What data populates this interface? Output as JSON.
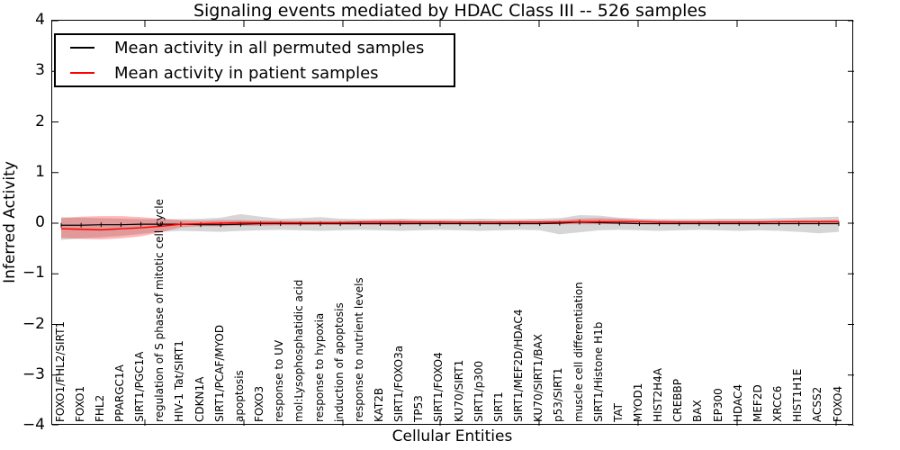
{
  "chart_data": {
    "type": "line",
    "title": "Signaling events mediated by HDAC Class III -- 526 samples",
    "xlabel": "Cellular Entities",
    "ylabel": "Inferred Activity",
    "ylim": [
      -4,
      4
    ],
    "y_ticks": [
      4,
      3,
      2,
      1,
      0,
      -1,
      -2,
      -3,
      -4
    ],
    "y_tick_labels": [
      "4",
      "3",
      "2",
      "1",
      "0",
      "−1",
      "−2",
      "−3",
      "−4"
    ],
    "grid": false,
    "legend_position": "upper left",
    "categories": [
      "FOXO1/FHL2/SIRT1",
      "FOXO1",
      "FHL2",
      "PPARGC1A",
      "SIRT1/PGC1A",
      "regulation of S phase of mitotic cell cycle",
      "HIV-1 Tat/SIRT1",
      "CDKN1A",
      "SIRT1/PCAF/MYOD",
      "apoptosis",
      "FOXO3",
      "response to UV",
      "mol:Lysophosphatidic acid",
      "response to hypoxia",
      "induction of apoptosis",
      "response to nutrient levels",
      "KAT2B",
      "SIRT1/FOXO3a",
      "TP53",
      "SIRT1/FOXO4",
      "KU70/SIRT1",
      "SIRT1/p300",
      "SIRT1",
      "SIRT1/MEF2D/HDAC4",
      "KU70/SIRT1/BAX",
      "p53/SIRT1",
      "muscle cell differentiation",
      "SIRT1/Histone H1b",
      "TAT",
      "MYOD1",
      "HIST2H4A",
      "CREBBP",
      "BAX",
      "EP300",
      "HDAC4",
      "MEF2D",
      "XRCC6",
      "HIST1H1E",
      "ACSS2",
      "FOXO4"
    ],
    "series": [
      {
        "name": "Mean activity in all permuted samples",
        "color": "#000000",
        "band_color": "#9e9e9e",
        "values": [
          -0.04,
          -0.04,
          -0.03,
          -0.03,
          -0.02,
          -0.02,
          -0.02,
          -0.03,
          -0.03,
          -0.02,
          -0.01,
          -0.01,
          -0.01,
          -0.01,
          -0.01,
          -0.01,
          -0.01,
          -0.01,
          -0.01,
          -0.01,
          -0.01,
          -0.01,
          -0.01,
          -0.01,
          -0.01,
          0.0,
          0.02,
          0.01,
          0.0,
          -0.01,
          -0.01,
          -0.01,
          -0.01,
          -0.01,
          -0.01,
          -0.01,
          -0.01,
          -0.01,
          -0.01,
          -0.01
        ],
        "band_low": [
          -0.33,
          -0.3,
          -0.28,
          -0.25,
          -0.21,
          -0.17,
          -0.15,
          -0.16,
          -0.17,
          -0.15,
          -0.14,
          -0.13,
          -0.14,
          -0.15,
          -0.14,
          -0.13,
          -0.14,
          -0.15,
          -0.14,
          -0.13,
          -0.14,
          -0.15,
          -0.14,
          -0.13,
          -0.14,
          -0.22,
          -0.18,
          -0.14,
          -0.13,
          -0.14,
          -0.15,
          -0.14,
          -0.13,
          -0.14,
          -0.15,
          -0.14,
          -0.15,
          -0.17,
          -0.2,
          -0.17
        ],
        "band_high": [
          0.12,
          0.11,
          0.1,
          0.09,
          0.08,
          0.08,
          0.08,
          0.09,
          0.11,
          0.18,
          0.13,
          0.09,
          0.1,
          0.12,
          0.09,
          0.08,
          0.08,
          0.09,
          0.08,
          0.08,
          0.08,
          0.09,
          0.08,
          0.08,
          0.09,
          0.1,
          0.16,
          0.15,
          0.11,
          0.09,
          0.08,
          0.08,
          0.08,
          0.09,
          0.09,
          0.09,
          0.1,
          0.11,
          0.12,
          0.13
        ]
      },
      {
        "name": "Mean activity in patient samples",
        "color": "#ff0000",
        "band_color": "#ff0000",
        "values": [
          -0.11,
          -0.12,
          -0.13,
          -0.11,
          -0.09,
          -0.06,
          -0.02,
          -0.01,
          0.0,
          0.01,
          0.01,
          0.01,
          0.01,
          0.01,
          0.01,
          0.02,
          0.02,
          0.02,
          0.02,
          0.02,
          0.02,
          0.02,
          0.02,
          0.02,
          0.02,
          0.02,
          0.03,
          0.03,
          0.03,
          0.03,
          0.02,
          0.02,
          0.02,
          0.02,
          0.02,
          0.02,
          0.03,
          0.03,
          0.03,
          0.03
        ],
        "band_low": [
          -0.29,
          -0.31,
          -0.32,
          -0.3,
          -0.26,
          -0.18,
          -0.08,
          -0.06,
          -0.06,
          -0.05,
          -0.05,
          -0.04,
          -0.04,
          -0.03,
          -0.03,
          -0.03,
          -0.03,
          -0.03,
          -0.02,
          -0.02,
          -0.02,
          -0.02,
          -0.02,
          -0.02,
          -0.02,
          -0.02,
          -0.02,
          -0.02,
          -0.01,
          -0.01,
          -0.01,
          -0.01,
          -0.01,
          -0.01,
          -0.01,
          -0.01,
          -0.01,
          -0.01,
          0.0,
          0.0
        ],
        "band_high": [
          0.1,
          0.13,
          0.14,
          0.14,
          0.12,
          0.09,
          0.06,
          0.05,
          0.06,
          0.06,
          0.05,
          0.05,
          0.04,
          0.04,
          0.04,
          0.05,
          0.06,
          0.06,
          0.05,
          0.05,
          0.04,
          0.04,
          0.04,
          0.05,
          0.05,
          0.06,
          0.09,
          0.1,
          0.09,
          0.07,
          0.06,
          0.05,
          0.05,
          0.05,
          0.05,
          0.05,
          0.05,
          0.06,
          0.06,
          0.07
        ]
      }
    ]
  }
}
